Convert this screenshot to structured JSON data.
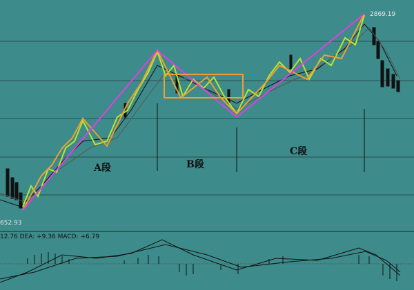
{
  "price_labels": {
    "high": "2869.19",
    "low": "652.93"
  },
  "segments": [
    "A段",
    "B段",
    "C段"
  ],
  "macd_label": "12.76 DEA: +9.36 MACD: +6.79"
}
